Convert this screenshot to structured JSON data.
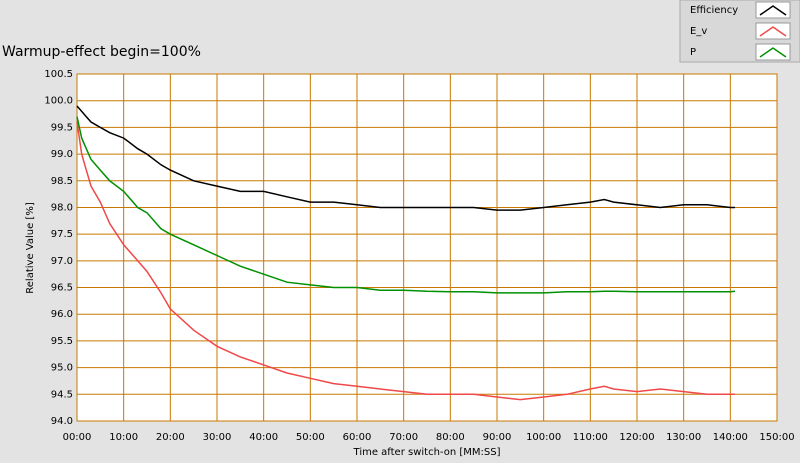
{
  "chart_data": {
    "type": "line",
    "title": "Warmup-effect begin=100%",
    "x_label": "Time after switch-on [MM:SS]",
    "y_label": "Relative Value [%]",
    "x": [
      0,
      1,
      2,
      3,
      5,
      7,
      10,
      13,
      15,
      18,
      20,
      25,
      30,
      35,
      40,
      45,
      50,
      55,
      60,
      65,
      70,
      75,
      80,
      85,
      90,
      95,
      100,
      105,
      110,
      113,
      115,
      120,
      125,
      130,
      135,
      140,
      141
    ],
    "series": [
      {
        "name": "Efficiency",
        "color": "#000000",
        "values": [
          99.9,
          99.8,
          99.7,
          99.6,
          99.5,
          99.4,
          99.3,
          99.1,
          99.0,
          98.8,
          98.7,
          98.5,
          98.4,
          98.3,
          98.3,
          98.2,
          98.1,
          98.1,
          98.05,
          98.0,
          98.0,
          98.0,
          98.0,
          98.0,
          97.95,
          97.95,
          98.0,
          98.05,
          98.1,
          98.15,
          98.1,
          98.05,
          98.0,
          98.05,
          98.05,
          98.0,
          98.0
        ]
      },
      {
        "name": "E_v",
        "color": "#f04848",
        "values": [
          99.6,
          99.0,
          98.7,
          98.4,
          98.1,
          97.7,
          97.3,
          97.0,
          96.8,
          96.4,
          96.1,
          95.7,
          95.4,
          95.2,
          95.05,
          94.9,
          94.8,
          94.7,
          94.65,
          94.6,
          94.55,
          94.5,
          94.5,
          94.5,
          94.45,
          94.4,
          94.45,
          94.5,
          94.6,
          94.65,
          94.6,
          94.55,
          94.6,
          94.55,
          94.5,
          94.5,
          94.5
        ]
      },
      {
        "name": "P",
        "color": "#009000",
        "values": [
          99.7,
          99.3,
          99.1,
          98.9,
          98.7,
          98.5,
          98.3,
          98.0,
          97.9,
          97.6,
          97.5,
          97.3,
          97.1,
          96.9,
          96.75,
          96.6,
          96.55,
          96.5,
          96.5,
          96.45,
          96.45,
          96.43,
          96.42,
          96.42,
          96.4,
          96.4,
          96.4,
          96.42,
          96.42,
          96.43,
          96.43,
          96.42,
          96.42,
          96.42,
          96.42,
          96.42,
          96.43
        ]
      }
    ],
    "xlim": [
      0,
      150
    ],
    "xticks": [
      {
        "value": 0,
        "label": "00:00"
      },
      {
        "value": 10,
        "label": "10:00"
      },
      {
        "value": 20,
        "label": "20:00"
      },
      {
        "value": 30,
        "label": "30:00"
      },
      {
        "value": 40,
        "label": "40:00"
      },
      {
        "value": 50,
        "label": "50:00"
      },
      {
        "value": 60,
        "label": "60:00"
      },
      {
        "value": 70,
        "label": "70:00"
      },
      {
        "value": 80,
        "label": "80:00"
      },
      {
        "value": 90,
        "label": "90:00"
      },
      {
        "value": 100,
        "label": "100:00"
      },
      {
        "value": 110,
        "label": "110:00"
      },
      {
        "value": 120,
        "label": "120:00"
      },
      {
        "value": 130,
        "label": "130:00"
      },
      {
        "value": 140,
        "label": "140:00"
      },
      {
        "value": 150,
        "label": "150:00"
      }
    ],
    "ylim": [
      94,
      100.5
    ],
    "yticks": [
      {
        "value": 94,
        "label": "94.0"
      },
      94.5,
      {
        "value": 95,
        "label": "95.0"
      },
      95.5,
      {
        "value": 96,
        "label": "96.0"
      },
      96.5,
      {
        "value": 97,
        "label": "97.0"
      },
      97.5,
      {
        "value": 98,
        "label": "98.0"
      },
      98.5,
      {
        "value": 99,
        "label": "99.0"
      },
      99.5,
      {
        "value": 100,
        "label": "100.0"
      },
      100.5
    ],
    "grid": true,
    "legend": "top-right"
  }
}
